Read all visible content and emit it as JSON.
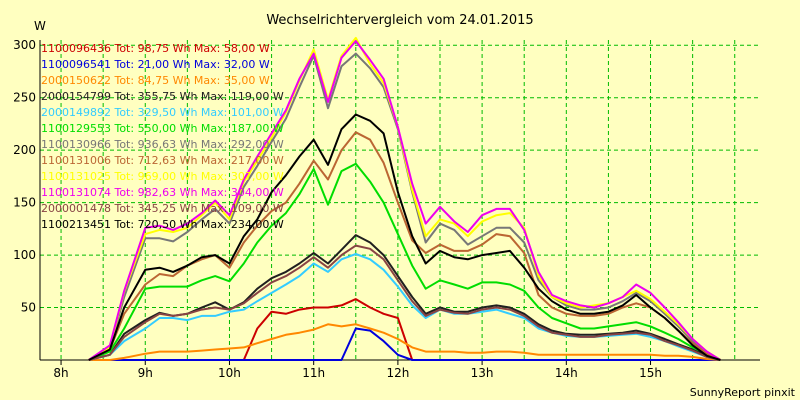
{
  "chart_data": {
    "type": "line",
    "title": "Wechselrichtervergleich vom 24.01.2015",
    "ylabel": "W",
    "xlabel": "",
    "ylim": [
      0,
      305
    ],
    "xlim": [
      7.75,
      16.3
    ],
    "grid": true,
    "legend_placement": "top-left inside plot",
    "x_ticks": [
      {
        "value": 8,
        "label": "8h"
      },
      {
        "value": 9,
        "label": "9h"
      },
      {
        "value": 10,
        "label": "10h"
      },
      {
        "value": 11,
        "label": "11h"
      },
      {
        "value": 12,
        "label": "12h"
      },
      {
        "value": 13,
        "label": "13h"
      },
      {
        "value": 14,
        "label": "14h"
      },
      {
        "value": 15,
        "label": "15h"
      }
    ],
    "y_ticks": [
      50,
      100,
      150,
      200,
      250,
      300
    ],
    "x": [
      8.33,
      8.58,
      8.75,
      9.0,
      9.17,
      9.33,
      9.5,
      9.67,
      9.83,
      10.0,
      10.17,
      10.33,
      10.5,
      10.67,
      10.83,
      11.0,
      11.17,
      11.33,
      11.5,
      11.67,
      11.83,
      12.0,
      12.17,
      12.33,
      12.5,
      12.67,
      12.83,
      13.0,
      13.17,
      13.33,
      13.5,
      13.67,
      13.83,
      14.0,
      14.17,
      14.33,
      14.5,
      14.67,
      14.83,
      15.0,
      15.17,
      15.33,
      15.5,
      15.67,
      15.83
    ],
    "series": [
      {
        "name": "1100096436 Tot: 98,75 Wh Max: 58,00 W",
        "color": "#cc0000",
        "values": [
          0,
          0,
          0,
          0,
          0,
          0,
          0,
          0,
          0,
          0,
          0,
          30,
          46,
          44,
          48,
          50,
          50,
          52,
          58,
          50,
          44,
          40,
          0,
          0,
          0,
          0,
          0,
          0,
          0,
          0,
          0,
          0,
          0,
          0,
          0,
          0,
          0,
          0,
          0,
          0,
          0,
          0,
          0,
          0,
          0
        ]
      },
      {
        "name": "1100096541 Tot: 21,00 Wh Max: 32,00 W",
        "color": "#0000dd",
        "values": [
          0,
          0,
          0,
          0,
          0,
          0,
          0,
          0,
          0,
          0,
          0,
          0,
          0,
          0,
          0,
          0,
          0,
          0,
          30,
          28,
          18,
          5,
          0,
          0,
          0,
          0,
          0,
          0,
          0,
          0,
          0,
          0,
          0,
          0,
          0,
          0,
          0,
          0,
          0,
          0,
          0,
          0,
          0,
          0,
          0
        ]
      },
      {
        "name": "2000150622 Tot: 84,75 Wh Max: 35,00 W",
        "color": "#ff8800",
        "values": [
          0,
          0,
          2,
          6,
          8,
          8,
          8,
          9,
          10,
          11,
          12,
          16,
          20,
          24,
          26,
          29,
          34,
          32,
          34,
          30,
          26,
          20,
          12,
          8,
          8,
          8,
          7,
          7,
          8,
          8,
          7,
          5,
          5,
          5,
          5,
          5,
          5,
          5,
          5,
          5,
          4,
          4,
          3,
          1,
          0
        ]
      },
      {
        "name": "2000154799 Tot: 355,75 Wh Max: 119,00 W",
        "color": "#202020",
        "values": [
          0,
          5,
          25,
          38,
          45,
          42,
          44,
          50,
          55,
          48,
          55,
          68,
          78,
          84,
          92,
          102,
          92,
          105,
          119,
          112,
          100,
          80,
          60,
          44,
          50,
          46,
          46,
          50,
          52,
          50,
          44,
          34,
          28,
          25,
          24,
          24,
          25,
          26,
          28,
          25,
          20,
          15,
          10,
          4,
          0
        ]
      },
      {
        "name": "2000149892 Tot: 329,50 Wh Max: 101,00 W",
        "color": "#33ccff",
        "values": [
          0,
          5,
          18,
          30,
          40,
          40,
          38,
          42,
          42,
          46,
          48,
          56,
          64,
          72,
          80,
          92,
          84,
          96,
          101,
          96,
          86,
          70,
          52,
          40,
          48,
          44,
          44,
          46,
          48,
          44,
          40,
          30,
          26,
          23,
          22,
          22,
          23,
          24,
          25,
          22,
          18,
          13,
          8,
          3,
          0
        ]
      },
      {
        "name": "1100129553 Tot: 550,00 Wh Max: 187,00 W",
        "color": "#00dd00",
        "values": [
          0,
          8,
          30,
          68,
          70,
          70,
          70,
          76,
          80,
          75,
          92,
          112,
          128,
          140,
          158,
          182,
          148,
          180,
          187,
          170,
          150,
          120,
          90,
          68,
          76,
          72,
          68,
          74,
          74,
          72,
          66,
          50,
          40,
          35,
          30,
          30,
          32,
          34,
          36,
          32,
          26,
          20,
          12,
          6,
          0
        ]
      },
      {
        "name": "1100130966 Tot: 936,63 Wh Max: 292,00 W",
        "color": "#777777",
        "values": [
          0,
          12,
          60,
          116,
          116,
          113,
          122,
          134,
          144,
          130,
          165,
          185,
          208,
          230,
          260,
          290,
          240,
          280,
          292,
          278,
          260,
          220,
          160,
          112,
          130,
          124,
          110,
          118,
          126,
          126,
          112,
          76,
          60,
          52,
          48,
          48,
          50,
          56,
          64,
          56,
          44,
          32,
          18,
          8,
          0
        ]
      },
      {
        "name": "1100131006 Tot: 712,63 Wh Max: 217,00 W",
        "color": "#bb6633",
        "values": [
          0,
          10,
          44,
          72,
          82,
          80,
          90,
          96,
          100,
          88,
          112,
          128,
          142,
          150,
          168,
          190,
          172,
          200,
          217,
          210,
          188,
          150,
          114,
          102,
          110,
          104,
          104,
          110,
          120,
          118,
          102,
          62,
          50,
          44,
          42,
          42,
          44,
          50,
          54,
          50,
          40,
          28,
          16,
          6,
          0
        ]
      },
      {
        "name": "1100131025 Tot: 969,00 Wh Max: 307,00 W",
        "color": "#ffff00",
        "values": [
          0,
          12,
          65,
          120,
          124,
          122,
          126,
          138,
          150,
          134,
          170,
          190,
          212,
          236,
          266,
          296,
          248,
          290,
          307,
          282,
          264,
          222,
          162,
          118,
          134,
          130,
          118,
          132,
          138,
          140,
          126,
          80,
          60,
          54,
          50,
          52,
          54,
          60,
          66,
          58,
          46,
          34,
          20,
          8,
          0
        ]
      },
      {
        "name": "1100131074 Tot: 982,63 Wh Max: 304,00 W",
        "color": "#ee00ee",
        "values": [
          0,
          14,
          66,
          126,
          128,
          124,
          130,
          140,
          152,
          138,
          172,
          194,
          216,
          238,
          268,
          292,
          246,
          288,
          304,
          286,
          268,
          222,
          168,
          130,
          146,
          132,
          122,
          138,
          144,
          144,
          124,
          84,
          62,
          56,
          52,
          50,
          54,
          60,
          72,
          64,
          50,
          36,
          20,
          8,
          0
        ]
      },
      {
        "name": "2000001478 Tot: 345,25 Wh Max: 109,00 W",
        "color": "#884444",
        "values": [
          0,
          5,
          22,
          36,
          44,
          42,
          44,
          48,
          50,
          48,
          54,
          64,
          74,
          80,
          88,
          98,
          88,
          100,
          109,
          106,
          96,
          76,
          56,
          42,
          48,
          45,
          44,
          48,
          50,
          48,
          42,
          32,
          26,
          24,
          22,
          22,
          24,
          25,
          26,
          24,
          18,
          14,
          9,
          3,
          0
        ]
      },
      {
        "name": "1100213451 Tot: 720,50 Wh Max: 234,00 W",
        "color": "#000000",
        "values": [
          0,
          10,
          50,
          86,
          88,
          84,
          90,
          98,
          100,
          92,
          118,
          134,
          160,
          176,
          194,
          210,
          186,
          220,
          234,
          228,
          216,
          160,
          118,
          92,
          104,
          98,
          96,
          100,
          102,
          104,
          88,
          68,
          56,
          48,
          44,
          44,
          46,
          52,
          62,
          50,
          40,
          28,
          14,
          4,
          0
        ]
      }
    ]
  },
  "footer": {
    "credit": "SunnyReport pinxit"
  }
}
